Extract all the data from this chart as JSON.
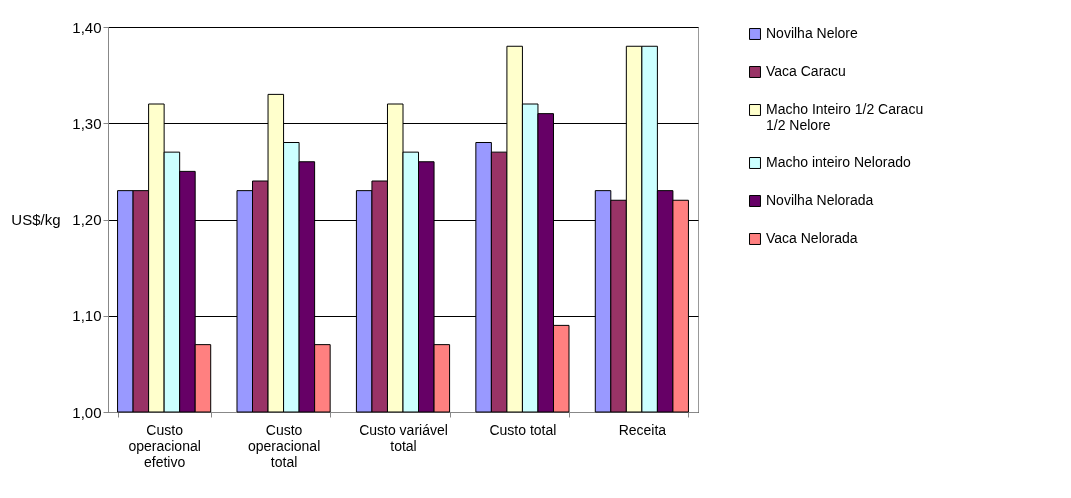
{
  "chart_data": {
    "type": "bar",
    "ylabel": "US$/kg",
    "categories": [
      "Custo operacional efetivo",
      "Custo operacional total",
      "Custo variável total",
      "Custo total",
      "Receita"
    ],
    "series": [
      {
        "name": "Novilha Nelore",
        "color": "#9999ff",
        "values": [
          1.23,
          1.23,
          1.23,
          1.28,
          1.23
        ]
      },
      {
        "name": "Vaca Caracu",
        "color": "#993366",
        "values": [
          1.23,
          1.24,
          1.24,
          1.27,
          1.22
        ]
      },
      {
        "name": "Macho Inteiro 1/2 Caracu 1/2 Nelore",
        "color": "#ffffcc",
        "values": [
          1.32,
          1.33,
          1.32,
          1.38,
          1.38
        ]
      },
      {
        "name": "Macho inteiro Nelorado",
        "color": "#ccffff",
        "values": [
          1.27,
          1.28,
          1.27,
          1.32,
          1.38
        ]
      },
      {
        "name": "Novilha Nelorada",
        "color": "#660066",
        "values": [
          1.25,
          1.26,
          1.26,
          1.31,
          1.23
        ]
      },
      {
        "name": "Vaca Nelorada",
        "color": "#ff8080",
        "values": [
          1.07,
          1.07,
          1.07,
          1.09,
          1.22
        ]
      }
    ],
    "ylim": [
      1.0,
      1.4
    ],
    "yticks": [
      {
        "value": 1.0,
        "label": "1,00"
      },
      {
        "value": 1.1,
        "label": "1,10"
      },
      {
        "value": 1.2,
        "label": "1,20"
      },
      {
        "value": 1.3,
        "label": "1,30"
      },
      {
        "value": 1.4,
        "label": "1,40"
      }
    ],
    "grid": "y",
    "legend": "right"
  }
}
